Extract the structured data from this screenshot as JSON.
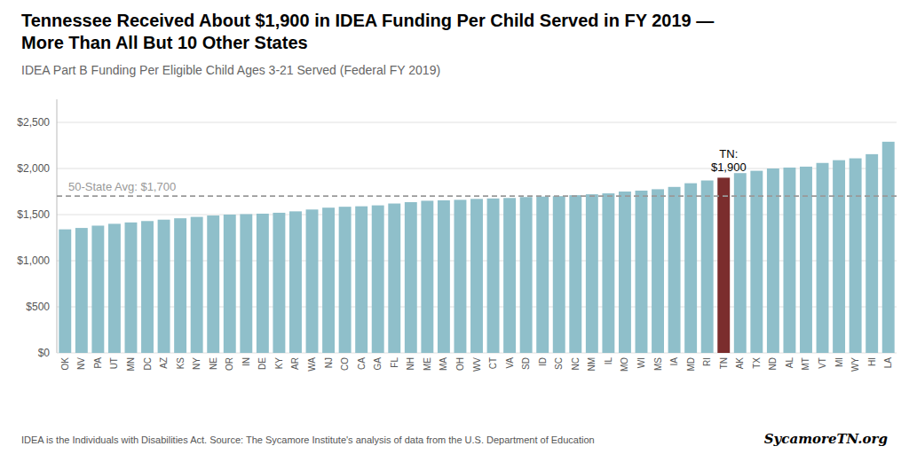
{
  "chart_data": {
    "type": "bar",
    "title": "Tennessee Received About $1,900 in IDEA Funding Per Child Served in FY 2019 —\nMore Than All But 10 Other States",
    "subtitle": "IDEA Part B Funding Per Eligible Child Ages 3-21 Served (Federal FY 2019)",
    "footnote": "IDEA is the Individuals with Disabilities Act. Source: The Sycamore Institute's analysis of data from the U.S. Department of Education",
    "watermark": "SycamoreTN.org",
    "categories": [
      "OK",
      "NV",
      "PA",
      "UT",
      "MN",
      "DC",
      "AZ",
      "KS",
      "NY",
      "NE",
      "OR",
      "IN",
      "DE",
      "KY",
      "AR",
      "WA",
      "NJ",
      "CO",
      "CA",
      "GA",
      "FL",
      "NH",
      "ME",
      "MA",
      "OH",
      "WV",
      "CT",
      "VA",
      "SD",
      "ID",
      "SC",
      "NC",
      "NM",
      "IL",
      "MO",
      "WI",
      "MS",
      "IA",
      "MD",
      "RI",
      "TN",
      "AK",
      "TX",
      "ND",
      "AL",
      "MT",
      "VT",
      "MI",
      "WY",
      "HI",
      "LA"
    ],
    "values": [
      1340,
      1355,
      1380,
      1400,
      1415,
      1430,
      1445,
      1460,
      1475,
      1490,
      1500,
      1505,
      1510,
      1520,
      1535,
      1555,
      1575,
      1585,
      1590,
      1600,
      1620,
      1635,
      1650,
      1655,
      1660,
      1670,
      1675,
      1680,
      1690,
      1695,
      1700,
      1710,
      1720,
      1730,
      1750,
      1760,
      1775,
      1800,
      1840,
      1870,
      1900,
      1950,
      1975,
      2000,
      2010,
      2020,
      2060,
      2090,
      2110,
      2155,
      2290
    ],
    "colors": [
      "#8fbfca",
      "#8fbfca",
      "#8fbfca",
      "#8fbfca",
      "#8fbfca",
      "#8fbfca",
      "#8fbfca",
      "#8fbfca",
      "#8fbfca",
      "#8fbfca",
      "#8fbfca",
      "#8fbfca",
      "#8fbfca",
      "#8fbfca",
      "#8fbfca",
      "#8fbfca",
      "#8fbfca",
      "#8fbfca",
      "#8fbfca",
      "#8fbfca",
      "#8fbfca",
      "#8fbfca",
      "#8fbfca",
      "#8fbfca",
      "#8fbfca",
      "#8fbfca",
      "#8fbfca",
      "#8fbfca",
      "#8fbfca",
      "#8fbfca",
      "#8fbfca",
      "#8fbfca",
      "#8fbfca",
      "#8fbfca",
      "#8fbfca",
      "#8fbfca",
      "#8fbfca",
      "#8fbfca",
      "#8fbfca",
      "#8fbfca",
      "#7b2d2d",
      "#8fbfca",
      "#8fbfca",
      "#8fbfca",
      "#8fbfca",
      "#8fbfca",
      "#8fbfca",
      "#8fbfca",
      "#8fbfca",
      "#8fbfca",
      "#8fbfca"
    ],
    "reference_lines": [
      {
        "value": 1700,
        "label": "50-State Avg: $1,700",
        "color": "#999999"
      }
    ],
    "annotations": [
      {
        "text": "TN:\n$1,900",
        "category": "TN"
      }
    ],
    "ylim": [
      0,
      2750
    ],
    "yticks": [
      {
        "value": 0,
        "label": "$0"
      },
      {
        "value": 500,
        "label": "$500"
      },
      {
        "value": 1000,
        "label": "$1,000"
      },
      {
        "value": 1500,
        "label": "$1,500"
      },
      {
        "value": 2000,
        "label": "$2,000"
      },
      {
        "value": 2500,
        "label": "$2,500"
      }
    ],
    "grid": true
  }
}
